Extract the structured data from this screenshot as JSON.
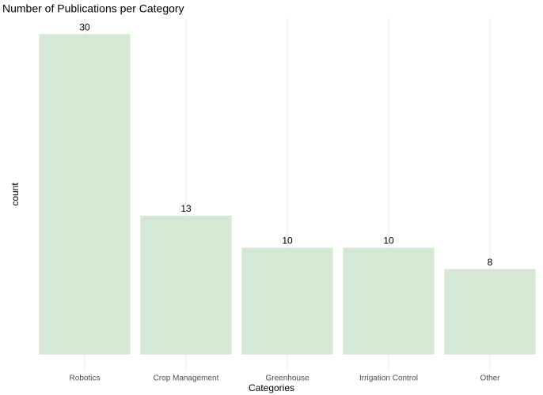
{
  "chart_data": {
    "type": "bar",
    "title": "Number of Publications per Category",
    "x_label": "Categories",
    "y_label": "count",
    "categories": [
      "Robotics",
      "Crop Management",
      "Greenhouse",
      "Irrigation Control",
      "Other"
    ],
    "values": [
      30,
      13,
      10,
      10,
      8
    ],
    "color": "#d5e8d4",
    "ylim": [
      -1.5,
      31.5
    ],
    "grid": true
  }
}
